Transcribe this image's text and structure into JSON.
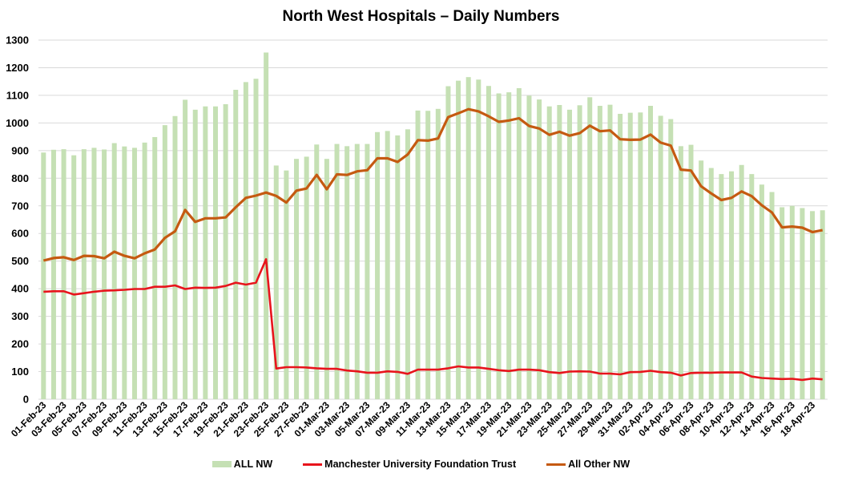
{
  "chart_data": {
    "type": "bar+line",
    "title": "North West Hospitals – Daily Numbers",
    "xlabel": "",
    "ylabel": "",
    "ylim": [
      0,
      1300
    ],
    "yticks": [
      0,
      100,
      200,
      300,
      400,
      500,
      600,
      700,
      800,
      900,
      1000,
      1100,
      1200,
      1300
    ],
    "grid": true,
    "legend_position": "bottom",
    "categories": [
      "01-Feb-23",
      "02-Feb-23",
      "03-Feb-23",
      "04-Feb-23",
      "05-Feb-23",
      "06-Feb-23",
      "07-Feb-23",
      "08-Feb-23",
      "09-Feb-23",
      "10-Feb-23",
      "11-Feb-23",
      "12-Feb-23",
      "13-Feb-23",
      "14-Feb-23",
      "15-Feb-23",
      "16-Feb-23",
      "17-Feb-23",
      "18-Feb-23",
      "19-Feb-23",
      "20-Feb-23",
      "21-Feb-23",
      "22-Feb-23",
      "23-Feb-23",
      "24-Feb-23",
      "25-Feb-23",
      "26-Feb-23",
      "27-Feb-23",
      "28-Feb-23",
      "01-Mar-23",
      "02-Mar-23",
      "03-Mar-23",
      "04-Mar-23",
      "05-Mar-23",
      "06-Mar-23",
      "07-Mar-23",
      "08-Mar-23",
      "09-Mar-23",
      "10-Mar-23",
      "11-Mar-23",
      "12-Mar-23",
      "13-Mar-23",
      "14-Mar-23",
      "15-Mar-23",
      "16-Mar-23",
      "17-Mar-23",
      "18-Mar-23",
      "19-Mar-23",
      "20-Mar-23",
      "21-Mar-23",
      "22-Mar-23",
      "23-Mar-23",
      "24-Mar-23",
      "25-Mar-23",
      "26-Mar-23",
      "27-Mar-23",
      "28-Mar-23",
      "29-Mar-23",
      "30-Mar-23",
      "31-Mar-23",
      "01-Apr-23",
      "02-Apr-23",
      "03-Apr-23",
      "04-Apr-23",
      "05-Apr-23",
      "06-Apr-23",
      "07-Apr-23",
      "08-Apr-23",
      "09-Apr-23",
      "10-Apr-23",
      "11-Apr-23",
      "12-Apr-23",
      "13-Apr-23",
      "14-Apr-23",
      "15-Apr-23",
      "16-Apr-23",
      "17-Apr-23",
      "18-Apr-23",
      "19-Apr-23"
    ],
    "xtick_labels_shown": [
      "01-Feb-23",
      "03-Feb-23",
      "05-Feb-23",
      "07-Feb-23",
      "09-Feb-23",
      "11-Feb-23",
      "13-Feb-23",
      "15-Feb-23",
      "17-Feb-23",
      "19-Feb-23",
      "21-Feb-23",
      "23-Feb-23",
      "25-Feb-23",
      "27-Feb-23",
      "01-Mar-23",
      "03-Mar-23",
      "05-Mar-23",
      "07-Mar-23",
      "09-Mar-23",
      "11-Mar-23",
      "13-Mar-23",
      "15-Mar-23",
      "17-Mar-23",
      "19-Mar-23",
      "21-Mar-23",
      "23-Mar-23",
      "25-Mar-23",
      "27-Mar-23",
      "29-Mar-23",
      "31-Mar-23",
      "02-Apr-23",
      "04-Apr-23",
      "06-Apr-23",
      "08-Apr-23",
      "10-Apr-23",
      "12-Apr-23",
      "14-Apr-23",
      "16-Apr-23",
      "18-Apr-23"
    ],
    "series": [
      {
        "name": "ALL NW",
        "type": "bar",
        "color": "#c5e0b4",
        "values": [
          893,
          903,
          905,
          883,
          905,
          910,
          904,
          927,
          915,
          910,
          929,
          949,
          992,
          1025,
          1084,
          1048,
          1060,
          1060,
          1068,
          1120,
          1148,
          1160,
          1255,
          846,
          828,
          870,
          878,
          922,
          870,
          924,
          916,
          924,
          924,
          967,
          971,
          955,
          977,
          1045,
          1044,
          1051,
          1133,
          1153,
          1166,
          1157,
          1134,
          1107,
          1111,
          1126,
          1099,
          1085,
          1060,
          1065,
          1048,
          1064,
          1093,
          1062,
          1066,
          1033,
          1037,
          1038,
          1062,
          1026,
          1014,
          916,
          921,
          864,
          837,
          815,
          825,
          848,
          815,
          777,
          750,
          695,
          700,
          692,
          681,
          684
        ]
      },
      {
        "name": "Manchester University Foundation Trust",
        "type": "line",
        "color": "#e8141c",
        "values": [
          389,
          391,
          391,
          379,
          384,
          389,
          393,
          394,
          396,
          399,
          399,
          407,
          407,
          412,
          399,
          404,
          403,
          404,
          410,
          422,
          415,
          422,
          507,
          111,
          116,
          116,
          115,
          112,
          110,
          110,
          104,
          101,
          96,
          96,
          101,
          99,
          92,
          107,
          107,
          107,
          112,
          119,
          115,
          115,
          110,
          105,
          102,
          107,
          107,
          105,
          98,
          95,
          100,
          101,
          100,
          93,
          93,
          90,
          98,
          99,
          103,
          98,
          96,
          86,
          95,
          96,
          96,
          97,
          97,
          97,
          82,
          77,
          75,
          73,
          74,
          70,
          75,
          72
        ]
      },
      {
        "name": "All Other NW",
        "type": "line",
        "color": "#c55a11",
        "values": [
          502,
          511,
          514,
          504,
          519,
          518,
          510,
          534,
          519,
          510,
          528,
          542,
          584,
          608,
          685,
          642,
          655,
          655,
          658,
          695,
          729,
          737,
          748,
          736,
          712,
          755,
          763,
          812,
          760,
          814,
          812,
          825,
          829,
          872,
          872,
          859,
          886,
          938,
          936,
          944,
          1021,
          1035,
          1050,
          1042,
          1024,
          1004,
          1009,
          1017,
          989,
          980,
          957,
          968,
          954,
          963,
          990,
          970,
          973,
          941,
          939,
          940,
          958,
          929,
          918,
          831,
          828,
          771,
          745,
          721,
          729,
          752,
          735,
          702,
          676,
          622,
          625,
          621,
          605,
          612
        ]
      }
    ]
  },
  "title": "North West Hospitals – Daily Numbers",
  "legend": {
    "items": [
      {
        "label": "ALL NW",
        "kind": "bar",
        "color": "#c5e0b4"
      },
      {
        "label": "Manchester University Foundation Trust",
        "kind": "line",
        "color": "#e8141c"
      },
      {
        "label": "All Other NW",
        "kind": "line",
        "color": "#c55a11"
      }
    ]
  },
  "colors": {
    "gridline": "#d9d9d9",
    "axis": "#d9d9d9",
    "text": "#000000"
  }
}
